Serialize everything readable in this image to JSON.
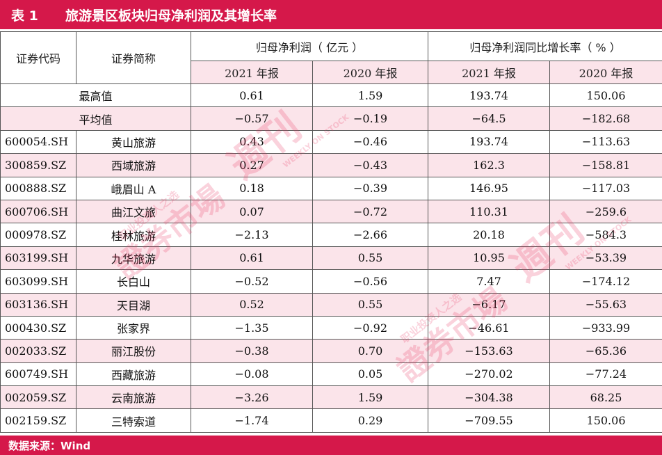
{
  "title": {
    "number": "表 1",
    "text": "旅游景区板块归母净利润及其增长率"
  },
  "header": {
    "code": "证券代码",
    "name": "证券简称",
    "profit_group": "归母净利润（ 亿元 ）",
    "growth_group": "归母净利润同比增长率（ % ）",
    "y2021": "2021 年报",
    "y2020": "2020 年报",
    "g2021": "2021 年报",
    "g2020": "2020 年报"
  },
  "summary": [
    {
      "label": "最高值",
      "p2021": "0.61",
      "p2020": "1.59",
      "g2021": "193.74",
      "g2020": "150.06"
    },
    {
      "label": "平均值",
      "p2021": "−0.57",
      "p2020": "−0.19",
      "g2021": "−64.5",
      "g2020": "−182.68"
    }
  ],
  "rows": [
    {
      "code": "600054.SH",
      "name": "黄山旅游",
      "p2021": "0.43",
      "p2020": "−0.46",
      "g2021": "193.74",
      "g2020": "−113.63"
    },
    {
      "code": "300859.SZ",
      "name": "西域旅游",
      "p2021": "0.27",
      "p2020": "−0.43",
      "g2021": "162.3",
      "g2020": "−158.81"
    },
    {
      "code": "000888.SZ",
      "name": "峨眉山 A",
      "p2021": "0.18",
      "p2020": "−0.39",
      "g2021": "146.95",
      "g2020": "−117.03"
    },
    {
      "code": "600706.SH",
      "name": "曲江文旅",
      "p2021": "0.07",
      "p2020": "−0.72",
      "g2021": "110.31",
      "g2020": "−259.6"
    },
    {
      "code": "000978.SZ",
      "name": "桂林旅游",
      "p2021": "−2.13",
      "p2020": "−2.66",
      "g2021": "20.18",
      "g2020": "−584.3"
    },
    {
      "code": "603199.SH",
      "name": "九华旅游",
      "p2021": "0.61",
      "p2020": "0.55",
      "g2021": "10.95",
      "g2020": "−53.39"
    },
    {
      "code": "603099.SH",
      "name": "长白山",
      "p2021": "−0.52",
      "p2020": "−0.56",
      "g2021": "7.47",
      "g2020": "−174.12"
    },
    {
      "code": "603136.SH",
      "name": "天目湖",
      "p2021": "0.52",
      "p2020": "0.55",
      "g2021": "−6.17",
      "g2020": "−55.63"
    },
    {
      "code": "000430.SZ",
      "name": "张家界",
      "p2021": "−1.35",
      "p2020": "−0.92",
      "g2021": "−46.61",
      "g2020": "−933.99"
    },
    {
      "code": "002033.SZ",
      "name": "丽江股份",
      "p2021": "−0.38",
      "p2020": "0.70",
      "g2021": "−153.63",
      "g2020": "−65.36"
    },
    {
      "code": "600749.SH",
      "name": "西藏旅游",
      "p2021": "−0.08",
      "p2020": "0.05",
      "g2021": "−270.02",
      "g2020": "−77.24"
    },
    {
      "code": "002059.SZ",
      "name": "云南旅游",
      "p2021": "−3.26",
      "p2020": "1.59",
      "g2021": "−304.38",
      "g2020": "68.25"
    },
    {
      "code": "002159.SZ",
      "name": "三特索道",
      "p2021": "−1.74",
      "p2020": "0.29",
      "g2021": "−709.55",
      "g2020": "150.06"
    }
  ],
  "footer": {
    "source": "数据来源：Wind"
  },
  "watermark": {
    "main": "證券市場",
    "weekly": "週刊",
    "tagline": "职业投资人之选",
    "english": "WEEKLY ON STOCK"
  },
  "colors": {
    "accent": "#d5184a",
    "shade": "#fbe4ea"
  }
}
